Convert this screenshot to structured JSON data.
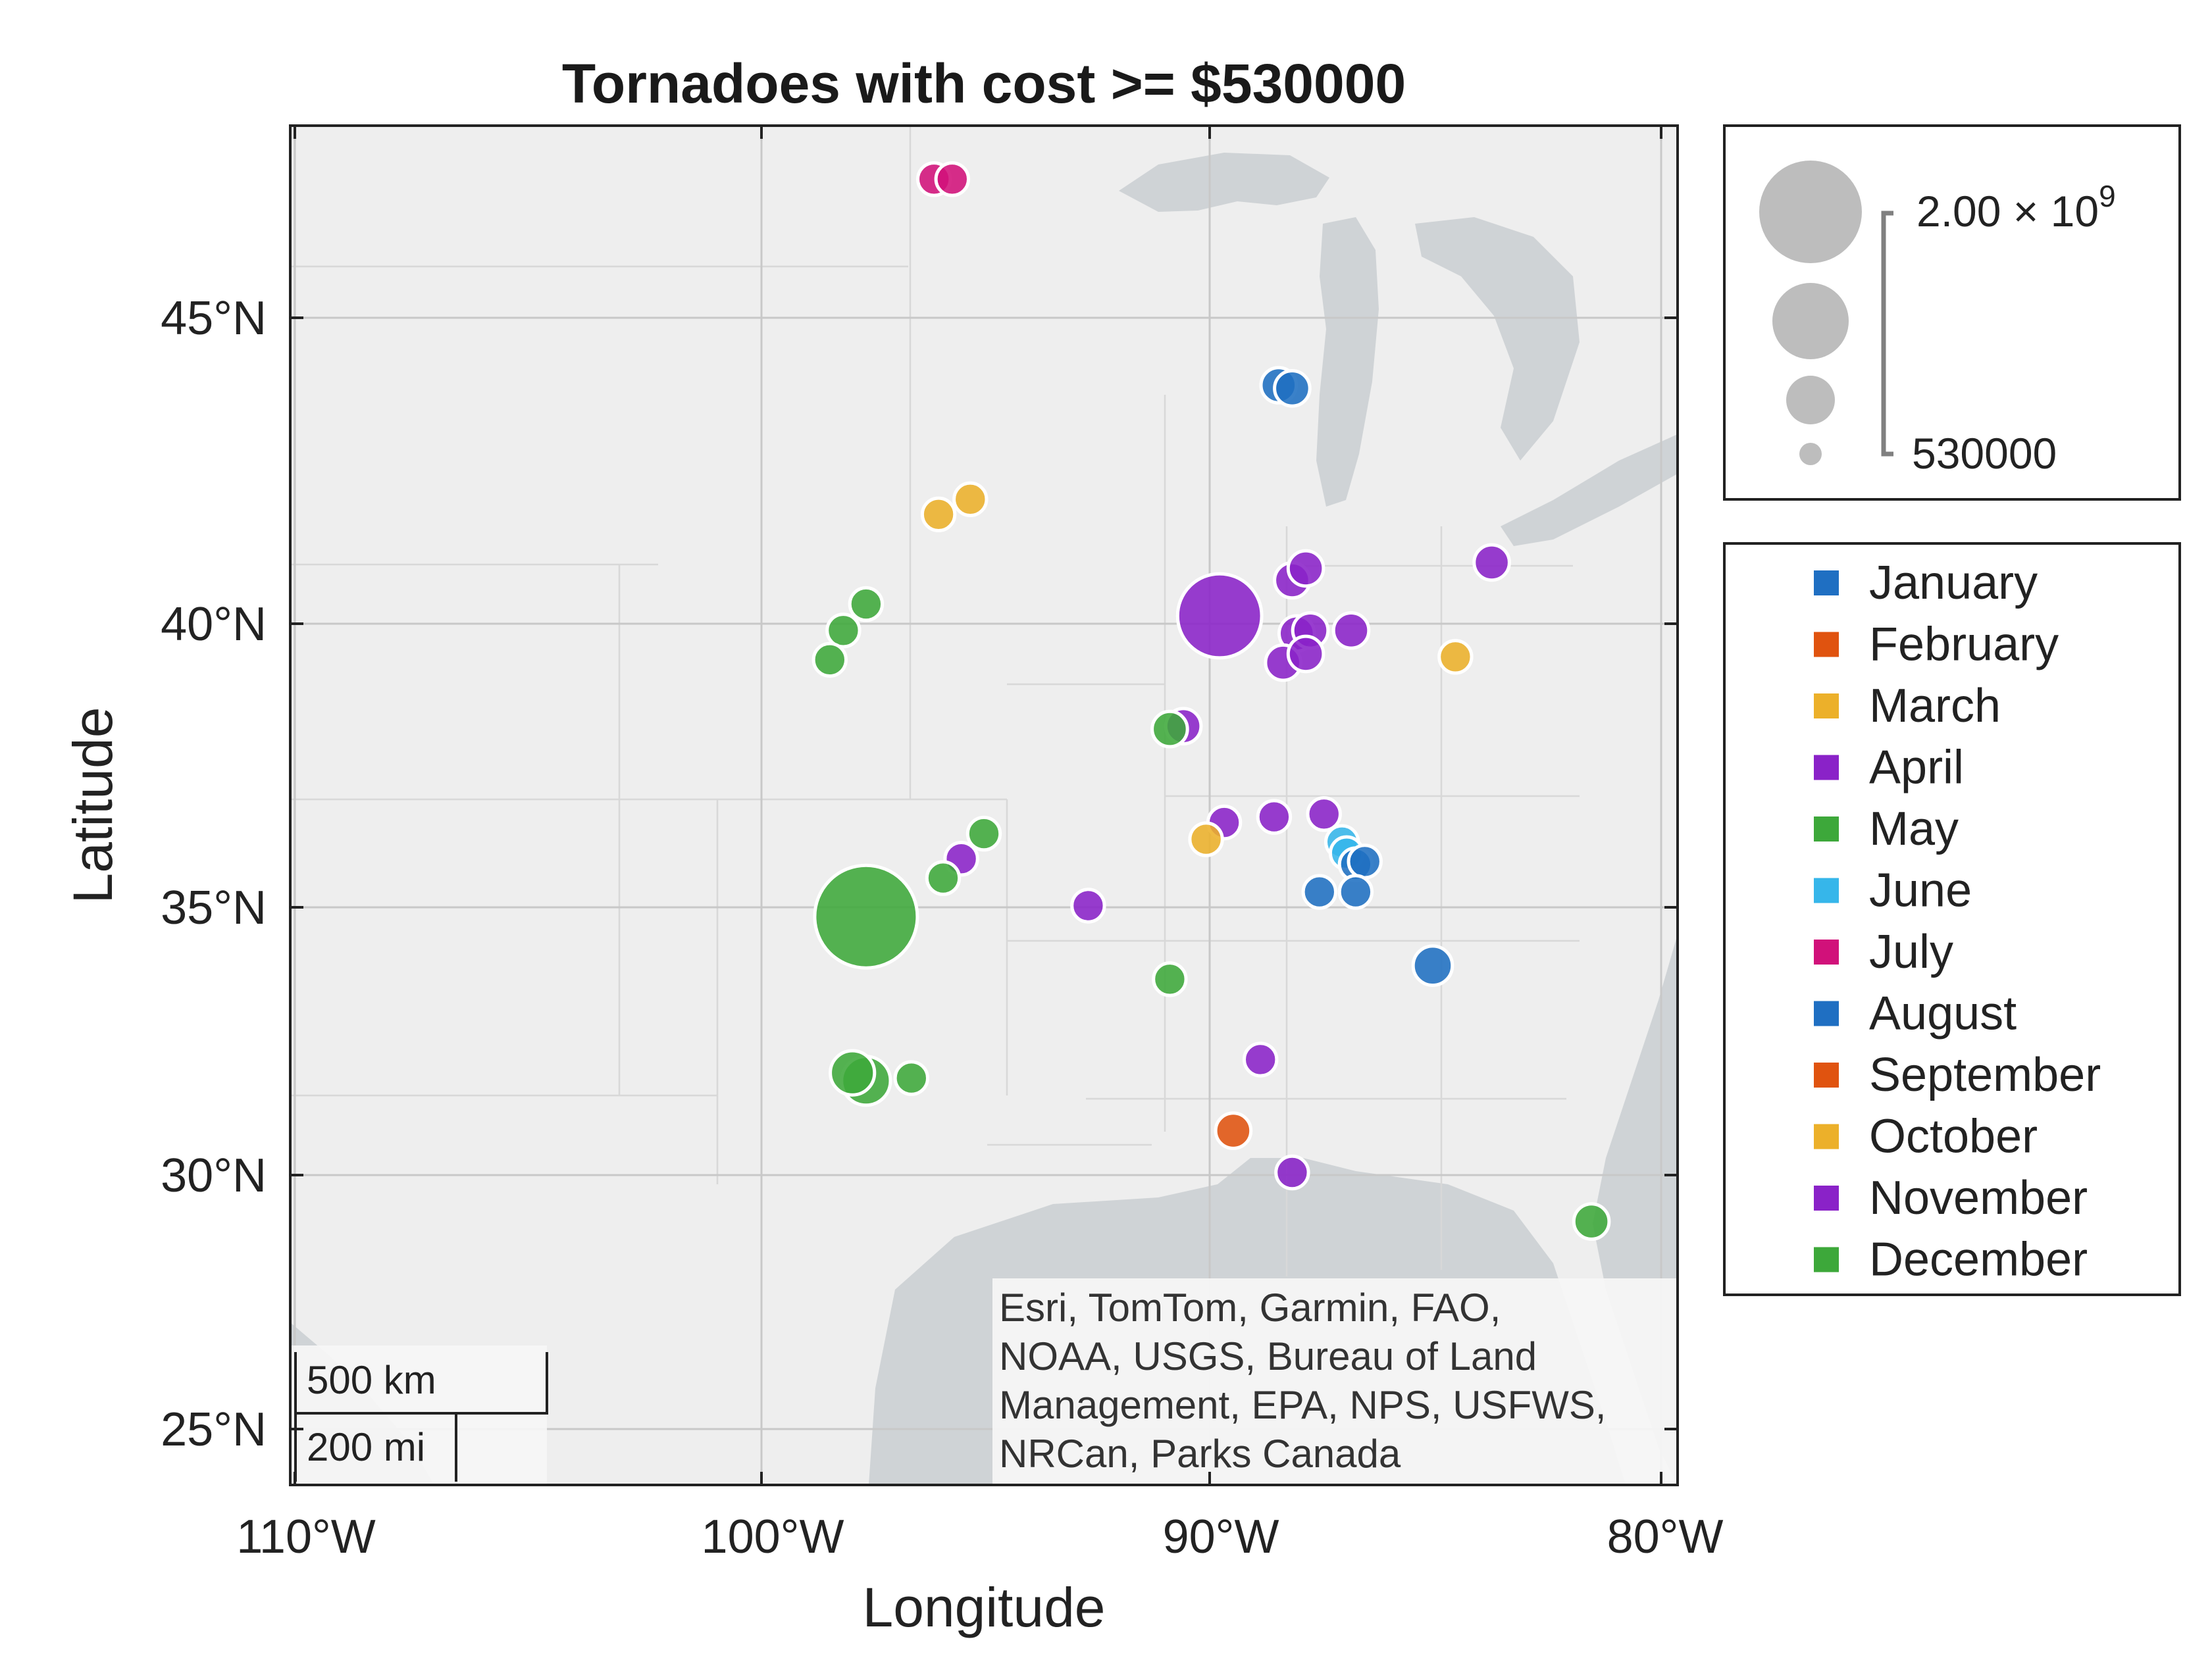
{
  "chart_data": {
    "type": "scatter",
    "title": "Tornadoes with cost >= $530000",
    "xlabel": "Longitude",
    "ylabel": "Latitude",
    "xlim": [
      -110.2,
      -79.6
    ],
    "ylim": [
      24.3,
      48.4
    ],
    "x_ticks": [
      {
        "value": -110,
        "label": "110°W"
      },
      {
        "value": -100,
        "label": "100°W"
      },
      {
        "value": -90,
        "label": "90°W"
      },
      {
        "value": -80,
        "label": "80°W"
      }
    ],
    "y_ticks": [
      {
        "value": 25,
        "label": "25°N"
      },
      {
        "value": 30,
        "label": "30°N"
      },
      {
        "value": 35,
        "label": "35°N"
      },
      {
        "value": 40,
        "label": "40°N"
      },
      {
        "value": 45,
        "label": "45°N"
      }
    ],
    "grid": true,
    "basemap": "light gray canvas",
    "attribution": [
      "Esri, TomTom, Garmin, FAO,",
      "NOAA, USGS, Bureau of Land",
      "Management, EPA, NPS, USFWS,",
      "NRCan, Parks Canada"
    ],
    "scalebar": {
      "km_label": "500 km",
      "mi_label": "200 mi"
    },
    "size_legend": {
      "max_label_base": "2.00 × 10",
      "max_label_exp": "9",
      "min_label": "530000",
      "max_value": 2000000000,
      "min_value": 530000
    },
    "legend_placement": "right",
    "series": [
      {
        "name": "January",
        "color": "#0072BD",
        "points": [
          [
            -88.4,
            44.4,
            2000000
          ],
          [
            -88.1,
            44.35,
            2000000
          ],
          [
            -85.0,
            34.4,
            3000000
          ]
        ]
      },
      {
        "name": "February",
        "color": "#D95319",
        "points": []
      },
      {
        "name": "March",
        "color": "#EDB120",
        "points": [
          [
            -95.9,
            42.3,
            1500000
          ],
          [
            -95.2,
            42.55,
            1500000
          ],
          [
            -84.5,
            39.9,
            1500000
          ]
        ]
      },
      {
        "name": "April",
        "color": "#7E2F8E",
        "points": [
          [
            -90.5,
            38.7,
            2000000
          ],
          [
            -89.7,
            40.6,
            300000000
          ],
          [
            -88.1,
            41.2,
            2000000
          ],
          [
            -87.8,
            41.4,
            2000000
          ],
          [
            -83.7,
            41.5,
            2000000
          ],
          [
            -88.0,
            40.3,
            2000000
          ],
          [
            -87.7,
            40.35,
            2000000
          ],
          [
            -88.3,
            39.8,
            2000000
          ],
          [
            -87.8,
            39.95,
            2000000
          ],
          [
            -86.8,
            40.35,
            2000000
          ],
          [
            -89.6,
            37.0,
            1500000
          ],
          [
            -88.5,
            37.1,
            1500000
          ],
          [
            -87.4,
            37.15,
            1500000
          ],
          [
            -95.4,
            36.35,
            1500000
          ],
          [
            -92.6,
            35.5,
            1500000
          ],
          [
            -88.8,
            32.65,
            1500000
          ],
          [
            -88.1,
            30.5,
            1500000
          ]
        ]
      },
      {
        "name": "May",
        "color": "#77AC30",
        "points": [
          [
            -97.5,
            35.3,
            2000000000
          ],
          [
            -97.5,
            40.8,
            1500000
          ],
          [
            -98.0,
            40.35,
            1500000
          ],
          [
            -98.3,
            39.85,
            1500000
          ],
          [
            -90.8,
            38.65,
            2000000
          ],
          [
            -94.9,
            36.8,
            1500000
          ],
          [
            -95.8,
            36.0,
            1500000
          ],
          [
            -90.8,
            34.15,
            1500000
          ],
          [
            -97.8,
            32.4,
            5000000
          ],
          [
            -97.5,
            32.25,
            8000000
          ],
          [
            -96.5,
            32.3,
            1500000
          ],
          [
            -81.5,
            29.55,
            2000000
          ]
        ]
      },
      {
        "name": "June",
        "color": "#4DBEEE",
        "points": [
          [
            -87.0,
            36.65,
            1500000
          ],
          [
            -86.9,
            36.45,
            1500000
          ]
        ]
      },
      {
        "name": "July",
        "color": "#A2142F",
        "points": [
          [
            -96.0,
            47.6,
            1500000
          ],
          [
            -95.6,
            47.6,
            1500000
          ]
        ]
      },
      {
        "name": "August",
        "color": "#0072BD",
        "points": [
          [
            -86.7,
            36.25,
            1500000
          ],
          [
            -86.5,
            36.3,
            1500000
          ],
          [
            -87.5,
            35.75,
            1500000
          ],
          [
            -86.7,
            35.75,
            1500000
          ]
        ]
      },
      {
        "name": "September",
        "color": "#D95319",
        "points": [
          [
            -89.4,
            31.3,
            2000000
          ]
        ]
      },
      {
        "name": "October",
        "color": "#EDB120",
        "points": [
          [
            -90.0,
            36.7,
            1500000
          ]
        ]
      },
      {
        "name": "November",
        "color": "#7E2F8E",
        "points": []
      },
      {
        "name": "December",
        "color": "#77AC30",
        "points": []
      }
    ],
    "legend_colors": {
      "January": "#1f6fc2",
      "February": "#e0530f",
      "March": "#ecb02a",
      "April": "#8a22c8",
      "May": "#3da83a",
      "June": "#36b6ea",
      "July": "#d1117a",
      "August": "#1f6fc2",
      "September": "#e0530f",
      "October": "#ecb02a",
      "November": "#8a22c8",
      "December": "#3da83a"
    }
  }
}
